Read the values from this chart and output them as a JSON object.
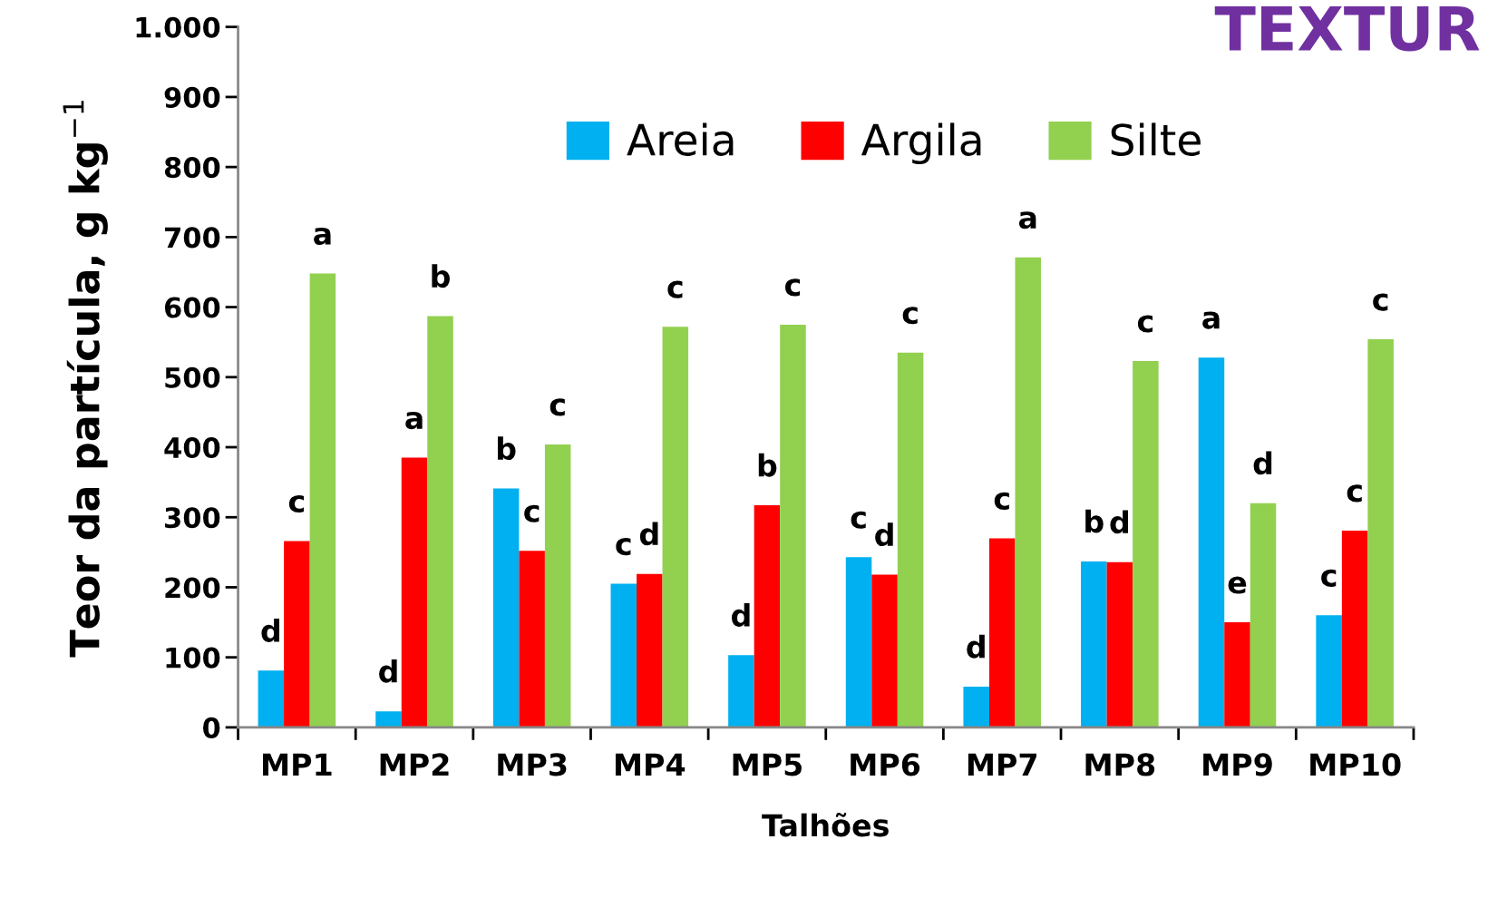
{
  "chart_data": {
    "type": "bar",
    "title": "TEXTUR",
    "xlabel": "Talhões",
    "ylabel": "Teor da partícula, g kg$^{−1}$",
    "categories": [
      "MP1",
      "MP2",
      "MP3",
      "MP4",
      "MP5",
      "MP6",
      "MP7",
      "MP8",
      "MP9",
      "MP10"
    ],
    "series": [
      {
        "name": "Areia",
        "color": "#00b0f0",
        "values": [
          81,
          23,
          341,
          205,
          103,
          243,
          58,
          237,
          528,
          160
        ],
        "value_labels": [
          "d",
          "d",
          "b",
          "c",
          "d",
          "c",
          "d",
          "b",
          "a",
          "c"
        ]
      },
      {
        "name": "Argila",
        "color": "#ff0000",
        "values": [
          266,
          385,
          252,
          219,
          317,
          218,
          270,
          236,
          150,
          281
        ],
        "value_labels": [
          "c",
          "a",
          "c",
          "d",
          "b",
          "d",
          "c",
          "d",
          "e",
          "c"
        ]
      },
      {
        "name": "Silte",
        "color": "#92d050",
        "values": [
          648,
          587,
          404,
          572,
          575,
          535,
          671,
          523,
          320,
          554
        ],
        "value_labels": [
          "a",
          "b",
          "c",
          "c",
          "c",
          "c",
          "a",
          "c",
          "d",
          "c"
        ]
      }
    ],
    "ylim": [
      0,
      1000
    ],
    "yticks": [
      0,
      100,
      200,
      300,
      400,
      500,
      600,
      700,
      800,
      900,
      {
        "value": 1000,
        "label": "1.000"
      }
    ],
    "grid": false,
    "legend": "top"
  }
}
